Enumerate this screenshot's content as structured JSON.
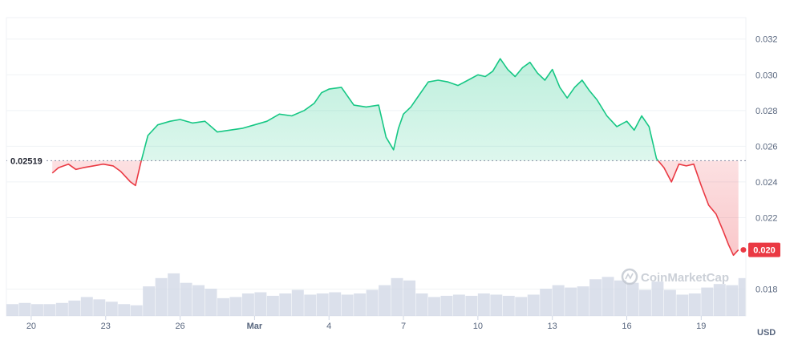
{
  "chart_data": {
    "type": "area",
    "currency": "USD",
    "reference_price": "0.02519",
    "reference_value": 0.02519,
    "current_price_label": "0.020",
    "current_value": 0.0202,
    "ylim": [
      0.0165,
      0.0332
    ],
    "xlim": [
      19.0,
      48.8
    ],
    "y_ticks": [
      {
        "value": 0.032,
        "label": "0.032"
      },
      {
        "value": 0.03,
        "label": "0.030"
      },
      {
        "value": 0.028,
        "label": "0.028"
      },
      {
        "value": 0.026,
        "label": "0.026"
      },
      {
        "value": 0.024,
        "label": "0.024"
      },
      {
        "value": 0.022,
        "label": "0.022"
      },
      {
        "value": 0.018,
        "label": "0.018"
      }
    ],
    "x_ticks": [
      {
        "value": 20,
        "label": "20",
        "bold": false
      },
      {
        "value": 23,
        "label": "23",
        "bold": false
      },
      {
        "value": 26,
        "label": "26",
        "bold": false
      },
      {
        "value": 29,
        "label": "Mar",
        "bold": true
      },
      {
        "value": 32,
        "label": "4",
        "bold": false
      },
      {
        "value": 35,
        "label": "7",
        "bold": false
      },
      {
        "value": 38,
        "label": "10",
        "bold": false
      },
      {
        "value": 41,
        "label": "13",
        "bold": false
      },
      {
        "value": 44,
        "label": "16",
        "bold": false
      },
      {
        "value": 47,
        "label": "19",
        "bold": false
      }
    ],
    "series": [
      {
        "x": [
          20.85,
          21.1,
          21.5,
          21.8,
          22.1,
          22.5,
          22.9,
          23.3,
          23.6,
          24.0,
          24.2,
          24.4,
          24.7,
          25.1,
          25.6,
          26.0,
          26.5,
          27.0,
          27.5,
          28.0,
          28.5,
          29.0,
          29.5,
          30.0,
          30.5,
          31.0,
          31.4,
          31.7,
          32.0,
          32.5,
          33.0,
          33.5,
          34.0,
          34.3,
          34.6,
          34.8,
          35.0,
          35.3,
          35.6,
          36.0,
          36.4,
          36.8,
          37.2,
          37.6,
          38.0,
          38.3,
          38.6,
          38.9,
          39.2,
          39.5,
          39.8,
          40.1,
          40.4,
          40.7,
          41.0,
          41.3,
          41.6,
          41.9,
          42.2,
          42.5,
          42.8,
          43.2,
          43.6,
          44.0,
          44.3,
          44.6,
          44.9,
          45.2,
          45.5,
          45.8,
          46.1,
          46.4,
          46.7,
          47.0,
          47.3,
          47.6,
          47.9,
          48.1,
          48.3,
          48.5
        ],
        "y": [
          0.0245,
          0.0248,
          0.025,
          0.0247,
          0.0248,
          0.0249,
          0.025,
          0.0249,
          0.0246,
          0.024,
          0.0238,
          0.025,
          0.0266,
          0.0272,
          0.0274,
          0.0275,
          0.0273,
          0.0274,
          0.0268,
          0.0269,
          0.027,
          0.0272,
          0.0274,
          0.0278,
          0.0277,
          0.028,
          0.0284,
          0.029,
          0.0292,
          0.0293,
          0.0283,
          0.0282,
          0.0283,
          0.0265,
          0.0258,
          0.027,
          0.0278,
          0.0282,
          0.0288,
          0.0296,
          0.0297,
          0.0296,
          0.0294,
          0.0297,
          0.03,
          0.0299,
          0.0302,
          0.0309,
          0.0303,
          0.0299,
          0.0304,
          0.0307,
          0.0301,
          0.0297,
          0.0303,
          0.0293,
          0.0287,
          0.0293,
          0.0297,
          0.0291,
          0.0286,
          0.0277,
          0.0271,
          0.0274,
          0.0269,
          0.0277,
          0.0271,
          0.0253,
          0.0248,
          0.024,
          0.025,
          0.0249,
          0.025,
          0.0238,
          0.0227,
          0.0222,
          0.0212,
          0.0205,
          0.0199,
          0.0202
        ]
      }
    ],
    "volume": {
      "x": [
        19.0,
        19.5,
        20.0,
        20.5,
        21.0,
        21.5,
        22.0,
        22.5,
        23.0,
        23.5,
        24.0,
        24.5,
        25.0,
        25.5,
        26.0,
        26.5,
        27.0,
        27.5,
        28.0,
        28.5,
        29.0,
        29.5,
        30.0,
        30.5,
        31.0,
        31.5,
        32.0,
        32.5,
        33.0,
        33.5,
        34.0,
        34.5,
        35.0,
        35.5,
        36.0,
        36.5,
        37.0,
        37.5,
        38.0,
        38.5,
        39.0,
        39.5,
        40.0,
        40.5,
        41.0,
        41.5,
        42.0,
        42.5,
        43.0,
        43.5,
        44.0,
        44.5,
        45.0,
        45.5,
        46.0,
        46.5,
        47.0,
        47.5,
        48.0,
        48.5
      ],
      "y": [
        1.0,
        1.1,
        1.0,
        1.0,
        1.1,
        1.3,
        1.6,
        1.4,
        1.2,
        1.0,
        0.9,
        2.5,
        3.2,
        3.6,
        2.8,
        2.6,
        2.3,
        1.5,
        1.6,
        1.9,
        2.0,
        1.7,
        1.9,
        2.2,
        1.8,
        1.9,
        2.0,
        1.8,
        1.9,
        2.2,
        2.6,
        3.2,
        3.0,
        1.9,
        1.6,
        1.7,
        1.8,
        1.7,
        1.9,
        1.8,
        1.7,
        1.6,
        1.8,
        2.3,
        2.6,
        2.4,
        2.5,
        3.1,
        3.3,
        3.0,
        2.8,
        2.2,
        2.9,
        2.2,
        1.8,
        1.9,
        2.4,
        2.7,
        2.6,
        3.2
      ],
      "max": 4.0
    }
  },
  "watermark": {
    "brand": "CoinMarketCap"
  },
  "colors": {
    "up": "#16c784",
    "down": "#ea3943",
    "grid": "#eff2f5",
    "volume": "#cfd6e4",
    "reference_line": "#858ca2",
    "watermark": "#c3c8d1"
  }
}
